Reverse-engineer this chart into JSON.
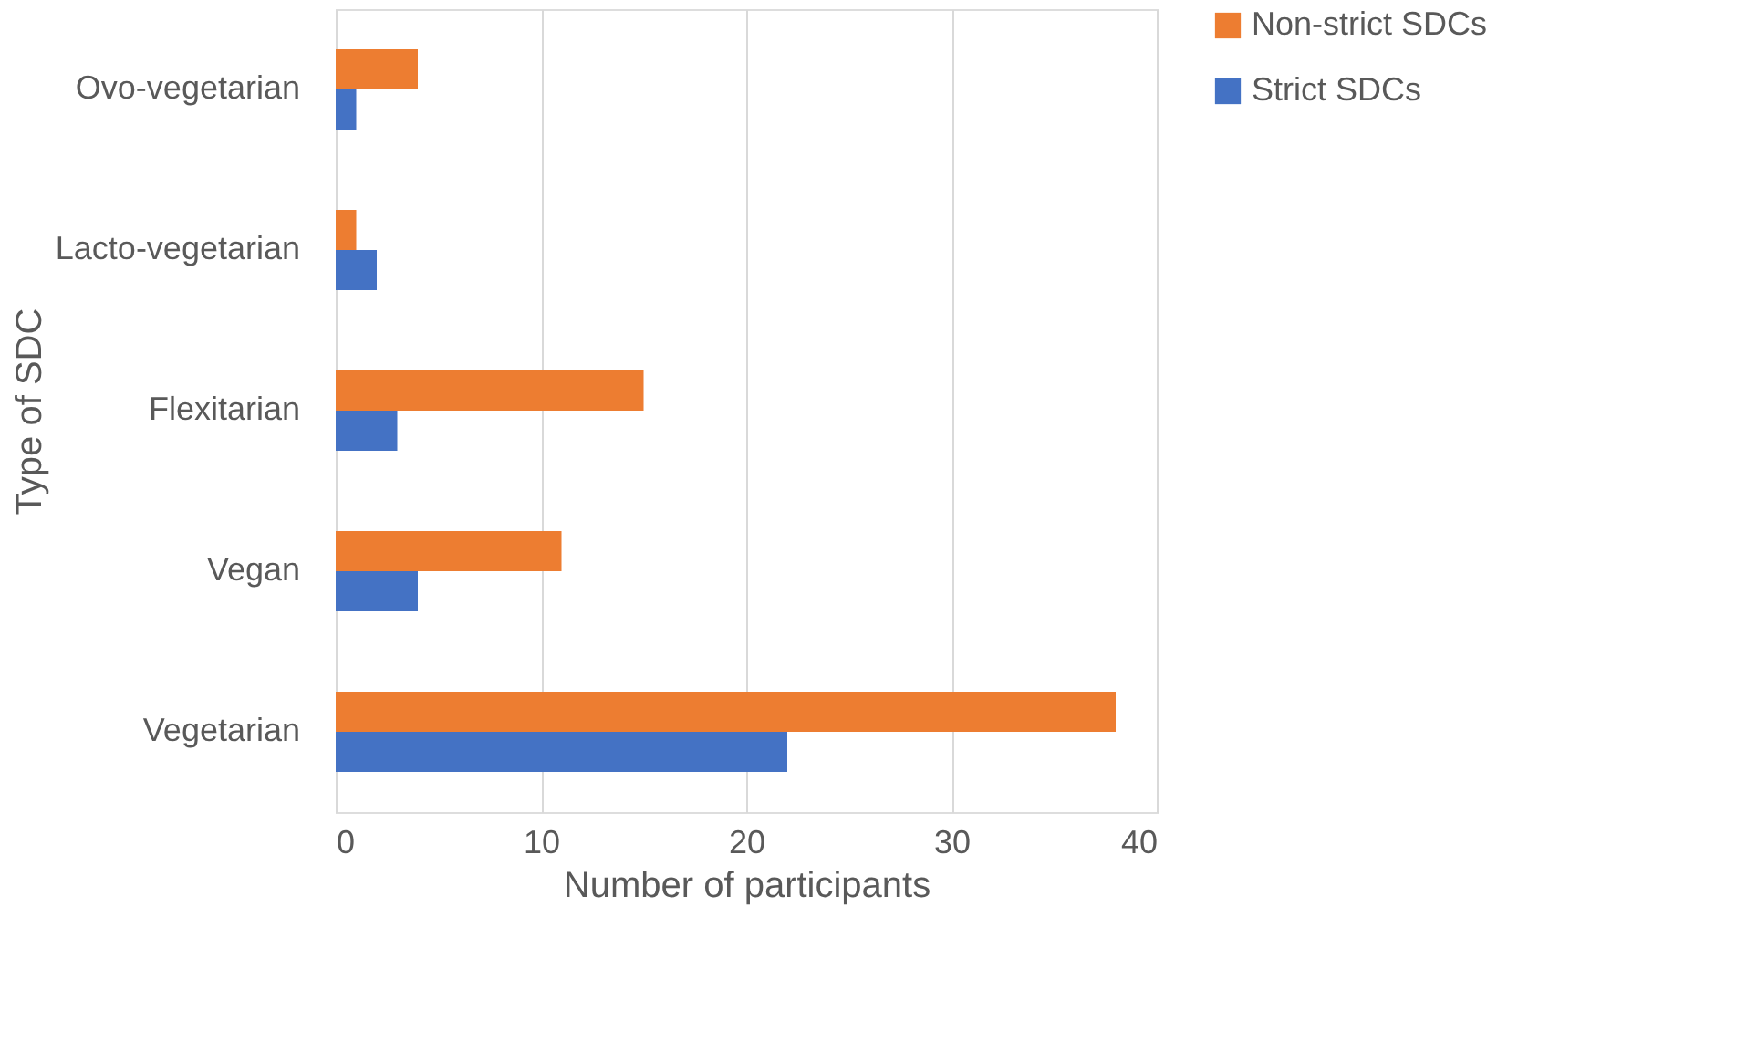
{
  "chart_data": {
    "type": "bar",
    "orientation": "horizontal",
    "xlabel": "Number of participants",
    "ylabel": "Type of SDC",
    "categories": [
      "Ovo-vegetarian",
      "Lacto-vegetarian",
      "Flexitarian",
      "Vegan",
      "Vegetarian"
    ],
    "series": [
      {
        "name": "Non-strict SDCs",
        "color": "#ed7d31",
        "values": [
          4,
          1,
          15,
          11,
          38
        ]
      },
      {
        "name": "Strict SDCs",
        "color": "#4472c4",
        "values": [
          1,
          2,
          3,
          4,
          22
        ]
      }
    ],
    "xlim": [
      0,
      40
    ],
    "xticks": [
      0,
      10,
      20,
      30,
      40
    ],
    "grid": "x",
    "legend": "right"
  }
}
